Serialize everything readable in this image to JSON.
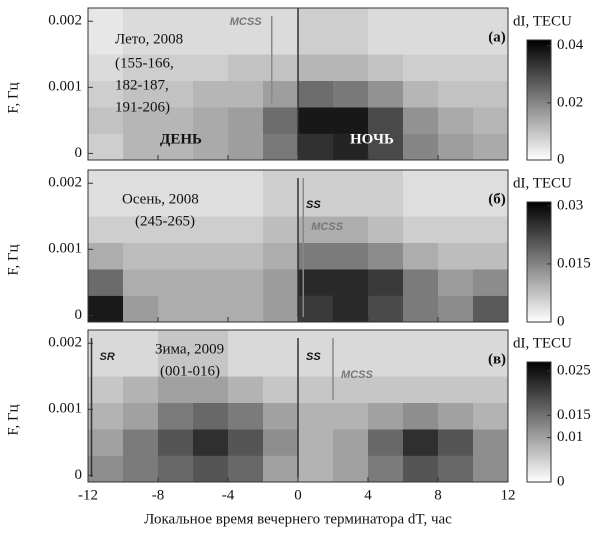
{
  "chart_data": [
    {
      "type": "heatmap",
      "panel_label": "(а)",
      "ylabel": "F, Гц",
      "colorbar_label": "dI, TECU",
      "annotations": [
        "Лето, 2008",
        "(155-166,",
        "182-187,",
        "191-206)",
        "ДЕНЬ",
        "НОЧЬ"
      ],
      "markers": [
        {
          "x": 0
        },
        {
          "label": "MCSS",
          "x": -1.5
        }
      ],
      "xbins": [
        -12,
        -10,
        -8,
        -6,
        -4,
        -2,
        0,
        2,
        4,
        6,
        8,
        10,
        12
      ],
      "ybins": [
        -0.0001,
        0.0003,
        0.0007,
        0.0011,
        0.0015,
        0.0022
      ],
      "xlim": [
        -12,
        12
      ],
      "xticks": [
        -12,
        -8,
        -4,
        0,
        4,
        8,
        12
      ],
      "ylim": [
        -0.0001,
        0.0022
      ],
      "yticks": [
        0,
        0.001,
        0.002
      ],
      "clim": [
        0,
        0.042
      ],
      "cticks": [
        0,
        0.02,
        0.04
      ],
      "z": [
        [
          0.008,
          0.012,
          0.012,
          0.014,
          0.016,
          0.022,
          0.034,
          0.036,
          0.03,
          0.02,
          0.016,
          0.014
        ],
        [
          0.01,
          0.012,
          0.012,
          0.014,
          0.016,
          0.024,
          0.038,
          0.038,
          0.03,
          0.018,
          0.014,
          0.012
        ],
        [
          0.008,
          0.01,
          0.01,
          0.012,
          0.012,
          0.016,
          0.024,
          0.022,
          0.018,
          0.012,
          0.01,
          0.01
        ],
        [
          0.006,
          0.008,
          0.008,
          0.008,
          0.01,
          0.01,
          0.012,
          0.012,
          0.01,
          0.008,
          0.008,
          0.008
        ],
        [
          0.004,
          0.006,
          0.006,
          0.006,
          0.006,
          0.006,
          0.008,
          0.008,
          0.006,
          0.006,
          0.006,
          0.006
        ]
      ]
    },
    {
      "type": "heatmap",
      "panel_label": "(б)",
      "ylabel": "F, Гц",
      "colorbar_label": "dI, TECU",
      "annotations": [
        "Осень, 2008",
        "(245-265)"
      ],
      "markers": [
        {
          "label": "SS",
          "x": 0
        },
        {
          "label": "MCSS",
          "x": 0.3
        }
      ],
      "xbins": [
        -12,
        -10,
        -8,
        -6,
        -4,
        -2,
        0,
        2,
        4,
        6,
        8,
        10,
        12
      ],
      "ybins": [
        -0.0001,
        0.0003,
        0.0007,
        0.0011,
        0.0015,
        0.0022
      ],
      "xlim": [
        -12,
        12
      ],
      "xticks": [
        -12,
        -8,
        -4,
        0,
        4,
        8,
        12
      ],
      "ylim": [
        -0.0001,
        0.0022
      ],
      "yticks": [
        0,
        0.001,
        0.002
      ],
      "clim": [
        0,
        0.031
      ],
      "cticks": [
        0,
        0.015,
        0.03
      ],
      "z": [
        [
          0.028,
          0.012,
          0.01,
          0.01,
          0.01,
          0.012,
          0.024,
          0.026,
          0.022,
          0.016,
          0.014,
          0.02
        ],
        [
          0.018,
          0.01,
          0.01,
          0.01,
          0.01,
          0.012,
          0.026,
          0.026,
          0.024,
          0.016,
          0.012,
          0.014
        ],
        [
          0.01,
          0.008,
          0.008,
          0.008,
          0.008,
          0.01,
          0.016,
          0.016,
          0.014,
          0.01,
          0.008,
          0.008
        ],
        [
          0.006,
          0.006,
          0.006,
          0.006,
          0.006,
          0.008,
          0.01,
          0.01,
          0.008,
          0.006,
          0.006,
          0.006
        ],
        [
          0.004,
          0.004,
          0.004,
          0.004,
          0.004,
          0.006,
          0.006,
          0.006,
          0.006,
          0.004,
          0.004,
          0.004
        ]
      ]
    },
    {
      "type": "heatmap",
      "panel_label": "(в)",
      "ylabel": "F, Гц",
      "colorbar_label": "dI, TECU",
      "xlabel": "Локальное время вечернего терминатора dT, час",
      "annotations": [
        "Зима, 2009",
        "(001-016)"
      ],
      "markers": [
        {
          "label": "SR",
          "x": -11.8
        },
        {
          "label": "SS",
          "x": 0
        },
        {
          "label": "MCSS",
          "x": 2
        }
      ],
      "xbins": [
        -12,
        -10,
        -8,
        -6,
        -4,
        -2,
        0,
        2,
        4,
        6,
        8,
        10,
        12
      ],
      "ybins": [
        -0.0001,
        0.0003,
        0.0007,
        0.0011,
        0.0015,
        0.0022
      ],
      "xlim": [
        -12,
        12
      ],
      "xticks": [
        -12,
        -8,
        -4,
        0,
        4,
        8,
        12
      ],
      "ylim": [
        -0.0001,
        0.0022
      ],
      "yticks": [
        0,
        0.001,
        0.002
      ],
      "clim": [
        0,
        0.027
      ],
      "cticks": [
        0,
        0.01,
        0.015,
        0.025
      ],
      "z": [
        [
          0.012,
          0.014,
          0.016,
          0.018,
          0.016,
          0.01,
          0.008,
          0.01,
          0.014,
          0.018,
          0.016,
          0.012
        ],
        [
          0.01,
          0.014,
          0.018,
          0.022,
          0.018,
          0.012,
          0.008,
          0.01,
          0.016,
          0.022,
          0.018,
          0.012
        ],
        [
          0.008,
          0.01,
          0.014,
          0.016,
          0.014,
          0.01,
          0.008,
          0.008,
          0.01,
          0.012,
          0.01,
          0.008
        ],
        [
          0.006,
          0.008,
          0.01,
          0.01,
          0.008,
          0.006,
          0.006,
          0.006,
          0.006,
          0.006,
          0.006,
          0.006
        ],
        [
          0.004,
          0.004,
          0.006,
          0.006,
          0.004,
          0.004,
          0.004,
          0.004,
          0.004,
          0.004,
          0.004,
          0.004
        ]
      ]
    }
  ]
}
